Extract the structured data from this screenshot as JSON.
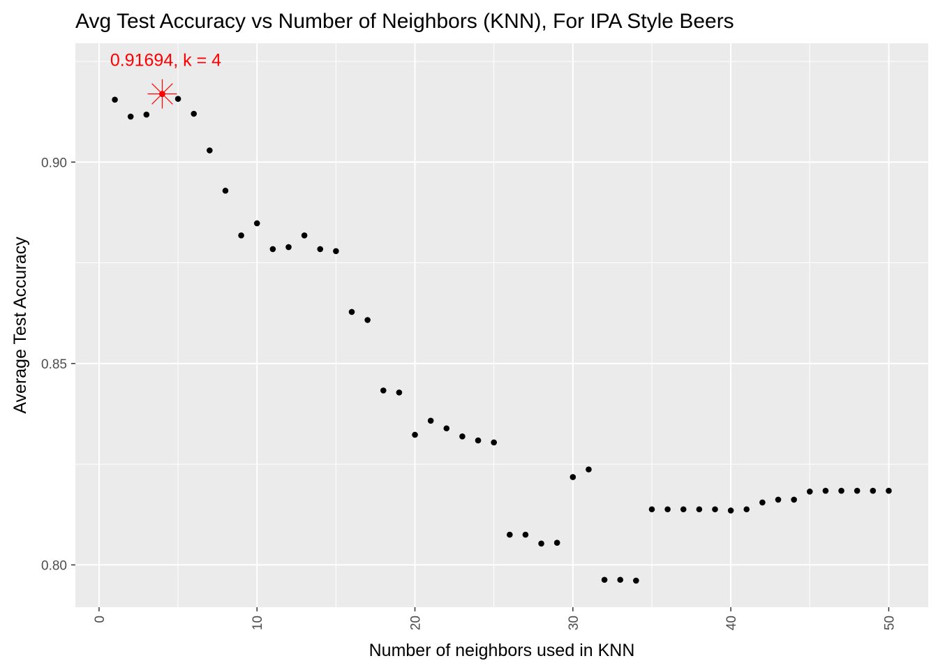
{
  "chart_data": {
    "type": "scatter",
    "title": "Avg Test Accuracy vs Number of Neighbors (KNN), For IPA Style Beers",
    "xlabel": "Number of neighbors used in KNN",
    "ylabel": "Average Test Accuracy",
    "xlim": [
      -1.5,
      52.5
    ],
    "ylim": [
      0.7895,
      0.9295
    ],
    "x_ticks": [
      0,
      10,
      20,
      30,
      40,
      50
    ],
    "x_tick_labels": [
      "0",
      "10",
      "20",
      "30",
      "40",
      "50"
    ],
    "y_ticks": [
      0.8,
      0.85,
      0.9
    ],
    "y_tick_labels": [
      "0.80",
      "0.85",
      "0.90"
    ],
    "grid": true,
    "point_color": "#000000",
    "x": [
      1,
      2,
      3,
      4,
      5,
      6,
      7,
      8,
      9,
      10,
      11,
      12,
      13,
      14,
      15,
      16,
      17,
      18,
      19,
      20,
      21,
      22,
      23,
      24,
      25,
      26,
      27,
      28,
      29,
      30,
      31,
      32,
      33,
      34,
      35,
      36,
      37,
      38,
      39,
      40,
      41,
      42,
      43,
      44,
      45,
      46,
      47,
      48,
      49,
      50
    ],
    "y": [
      0.9155,
      0.9113,
      0.9118,
      0.9169,
      0.9157,
      0.912,
      0.9029,
      0.8929,
      0.8818,
      0.8848,
      0.8784,
      0.8789,
      0.8818,
      0.8784,
      0.8779,
      0.8628,
      0.8608,
      0.8433,
      0.8428,
      0.8323,
      0.8358,
      0.8339,
      0.8319,
      0.8309,
      0.8304,
      0.8075,
      0.8075,
      0.8053,
      0.8055,
      0.8218,
      0.8237,
      0.7963,
      0.7963,
      0.7961,
      0.8138,
      0.8138,
      0.8138,
      0.8138,
      0.8138,
      0.8135,
      0.8138,
      0.8155,
      0.8162,
      0.8162,
      0.8182,
      0.8184,
      0.8184,
      0.8184,
      0.8184,
      0.8184
    ],
    "highlight": {
      "x": 4,
      "y": 0.91694,
      "label": "0.91694, k = 4",
      "color": "#ff0000"
    }
  }
}
